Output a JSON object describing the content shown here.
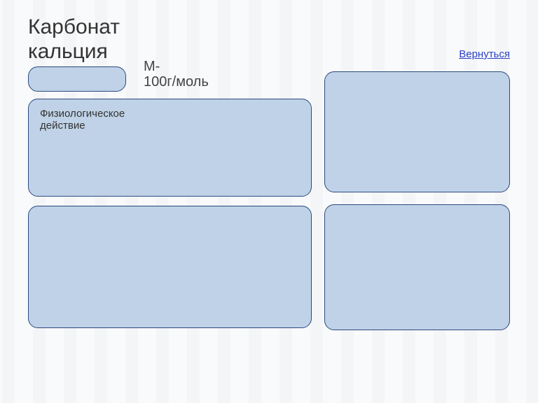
{
  "header": {
    "title": "Карбонат кальция"
  },
  "backLink": {
    "label": "Вернуться"
  },
  "mass": {
    "prefix": "М-",
    "value": "100г/моль"
  },
  "cards": {
    "formula": {
      "text": ""
    },
    "physiology": {
      "label": "Физиологическое действие",
      "body": ""
    },
    "properties": {
      "label": "",
      "body": ""
    },
    "qualitative": {
      "label": "",
      "body": ""
    },
    "application": {
      "label": "",
      "body": ""
    }
  },
  "style": {
    "cardBg": "#bfd2e7",
    "cardBorder": "#2b4a80",
    "cardRadius": 14,
    "linkColor": "#2a3fc9",
    "titleSize": 30,
    "bodyFontSize": 14
  }
}
